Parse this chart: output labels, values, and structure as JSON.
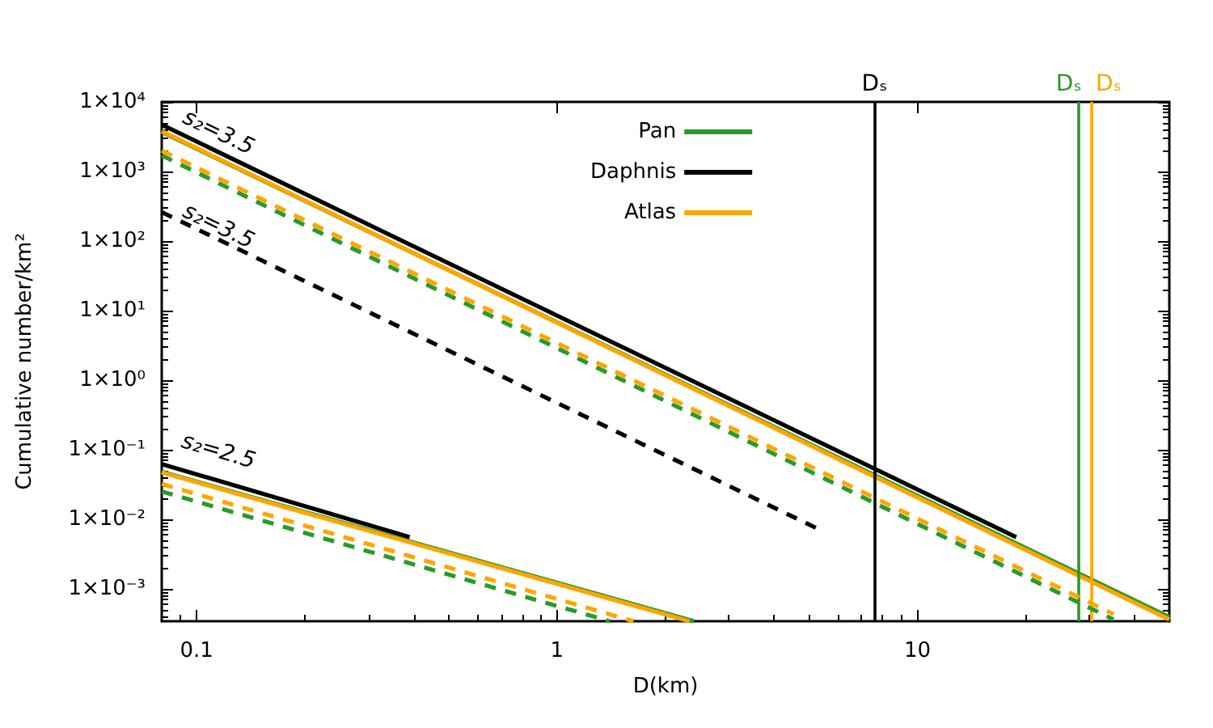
{
  "chart_data": {
    "type": "line",
    "xlabel": "D(km)",
    "ylabel": "Cumulative number/km²",
    "log": "xy",
    "grid": false,
    "legend": "top",
    "marker": "none",
    "xlim": [
      0.08,
      50
    ],
    "ylim": [
      0.00034,
      10000
    ],
    "xticks": [
      0.1,
      1,
      10
    ],
    "yticks": [
      {
        "value": 0.001,
        "label": "1×10⁻³"
      },
      {
        "value": 0.01,
        "label": "1×10⁻²"
      },
      {
        "value": 0.1,
        "label": "1×10⁻¹"
      },
      {
        "value": 1,
        "label": "1×10⁰"
      },
      {
        "value": 10,
        "label": "1×10¹"
      },
      {
        "value": 100,
        "label": "1×10²"
      },
      {
        "value": 1000,
        "label": "1×10³"
      },
      {
        "value": 10000,
        "label": "1×10⁴"
      }
    ],
    "series": [
      {
        "name": "Pan",
        "color": "#2a9a2a",
        "x": [
          0.08,
          50
        ],
        "values": [
          3700,
          0.00039
        ],
        "line_style": "solid"
      },
      {
        "name": "Daphnis",
        "color": "#000000",
        "x": [
          0.08,
          18.8
        ],
        "values": [
          4700,
          0.0055
        ],
        "line_style": "solid"
      },
      {
        "name": "Atlas",
        "color": "#ffa500",
        "x": [
          0.08,
          50
        ],
        "values": [
          3800,
          0.00036
        ],
        "line_style": "solid"
      },
      {
        "color": "#2a9a2a",
        "x": [
          0.08,
          35
        ],
        "values": [
          1700,
          0.00036
        ],
        "line_style": "dashed"
      },
      {
        "color": "#ffa500",
        "x": [
          0.08,
          35
        ],
        "values": [
          2000,
          0.00043
        ],
        "line_style": "dashed"
      },
      {
        "color": "#000000",
        "x": [
          0.08,
          5.4
        ],
        "values": [
          260,
          0.0069
        ],
        "line_style": "dashed"
      },
      {
        "color": "#2a9a2a",
        "x": [
          0.08,
          2.4
        ],
        "values": [
          0.048,
          0.00034
        ],
        "line_style": "solid"
      },
      {
        "color": "#ffa500",
        "x": [
          0.08,
          2.33
        ],
        "values": [
          0.047,
          0.00034
        ],
        "line_style": "solid"
      },
      {
        "color": "#000000",
        "x": [
          0.08,
          0.39
        ],
        "values": [
          0.062,
          0.0055
        ],
        "line_style": "solid"
      },
      {
        "color": "#2a9a2a",
        "x": [
          0.08,
          1.4
        ],
        "values": [
          0.025,
          0.00034
        ],
        "line_style": "dashed"
      },
      {
        "color": "#ffa500",
        "x": [
          0.08,
          1.63
        ],
        "values": [
          0.032,
          0.00034
        ],
        "line_style": "dashed"
      }
    ],
    "ref_lines": [
      {
        "axis": "x",
        "value": 7.6,
        "label": "Dₛ",
        "color": "#000000"
      },
      {
        "axis": "x",
        "value": 28,
        "label": "Dₛ",
        "color": "#2a9a2a"
      },
      {
        "axis": "x",
        "value": 30.3,
        "label": "Dₛ",
        "color": "#ffa500"
      }
    ],
    "annotations": [
      "s₂=3.5",
      "s₂=3.5",
      "s₂=2.5"
    ]
  }
}
